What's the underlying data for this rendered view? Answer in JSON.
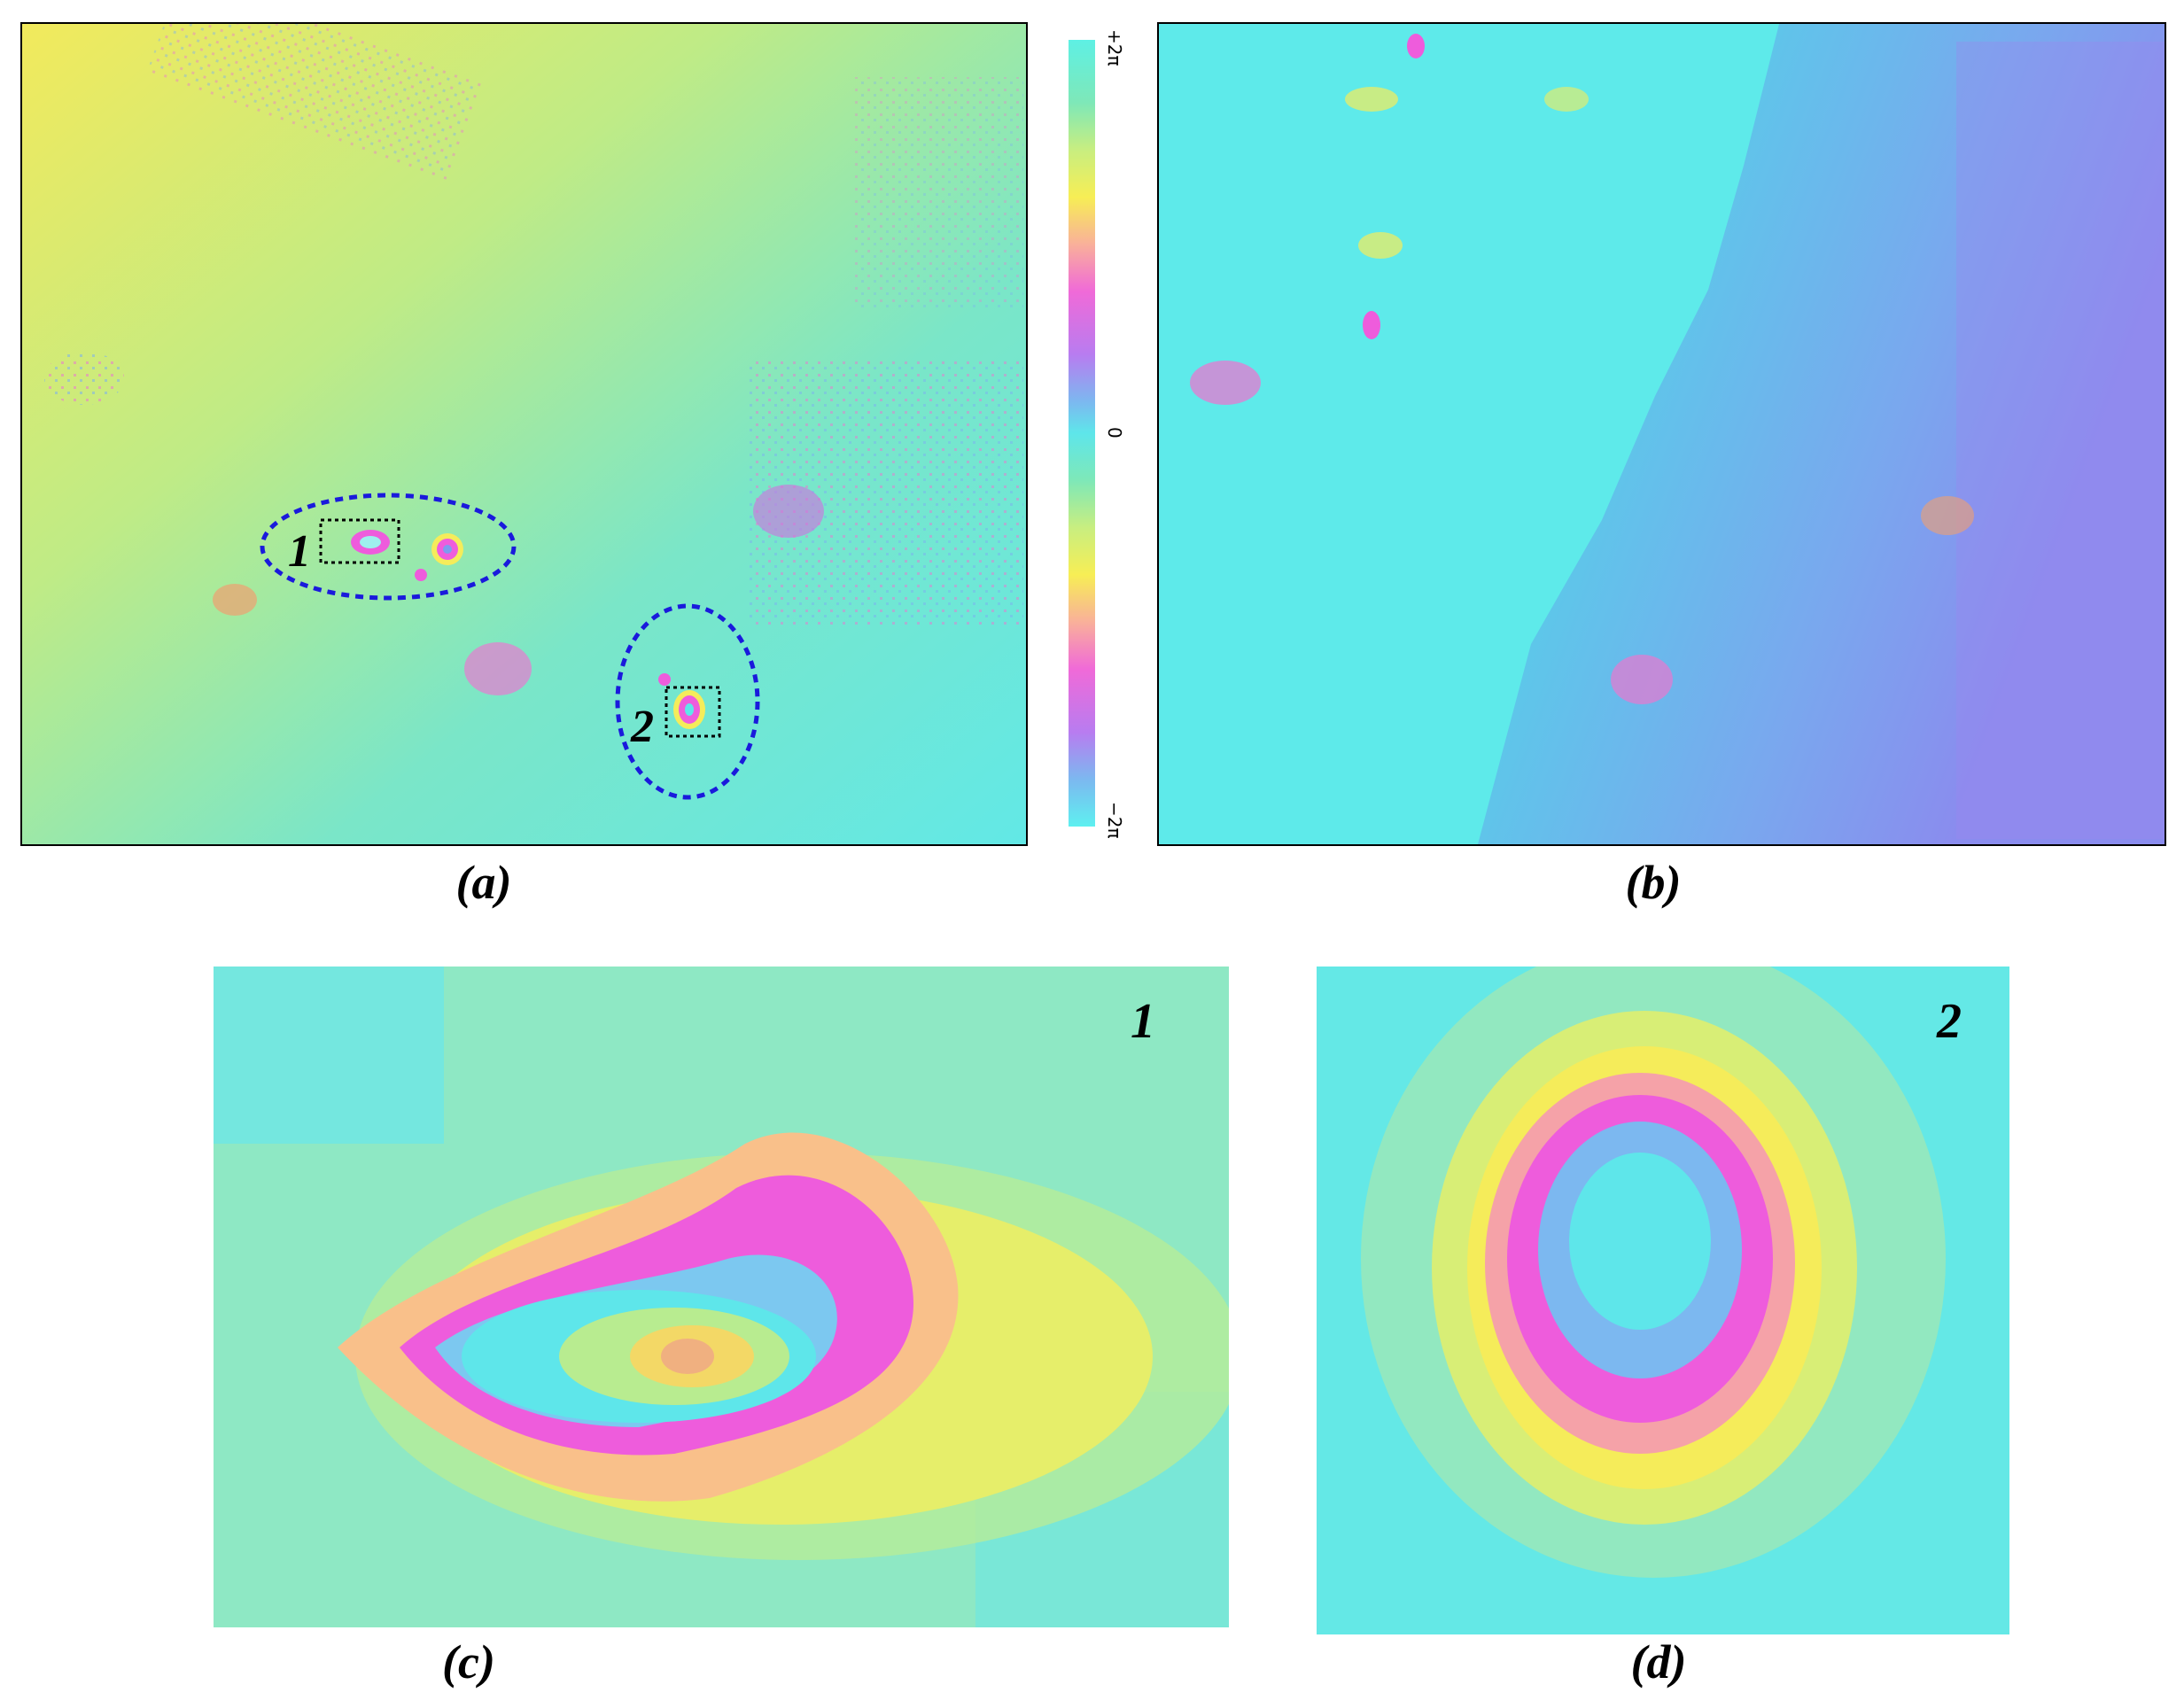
{
  "panels": {
    "a": {
      "caption": "(a)",
      "region_1_label": "1",
      "region_2_label": "2"
    },
    "b": {
      "caption": "(b)"
    },
    "c": {
      "caption": "(c)",
      "zoom_label": "1"
    },
    "d": {
      "caption": "(d)",
      "zoom_label": "2"
    }
  },
  "colorbar": {
    "max_label": "+2π",
    "mid_label": "0",
    "min_label": "−2π"
  },
  "colors": {
    "cyan": "#5ee6ea",
    "yellow": "#f5ec5a",
    "green": "#8ee8b4",
    "magenta": "#ee5cdc",
    "blue_violet": "#7c9cf0",
    "annotation_blue": "#1a1adc"
  }
}
